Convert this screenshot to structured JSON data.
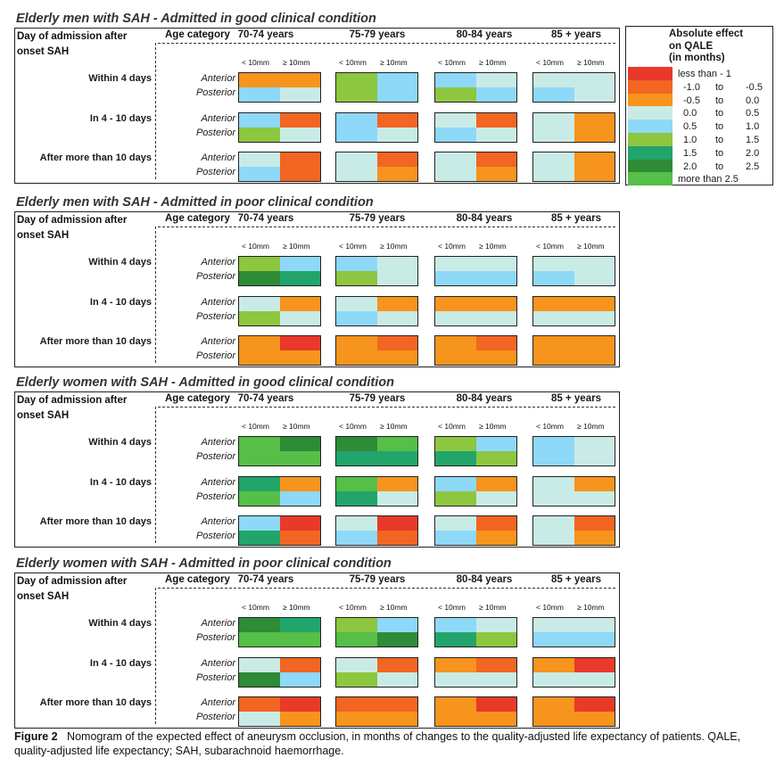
{
  "chart_data": {
    "type": "heatmap",
    "row_header": "Day of admission after onset SAH",
    "column_header": "Age category",
    "age_categories": [
      "70-74 years",
      "75-79 years",
      "80-84 years",
      "85 + years"
    ],
    "aneurysm_sizes": [
      "< 10mm",
      "≥ 10mm"
    ],
    "admission_timings": [
      "Within 4 days",
      "In 4 - 10 days",
      "After more than 10 days"
    ],
    "locations": [
      "Anterior",
      "Posterior"
    ],
    "legend": {
      "title_lines": [
        "Absolute effect",
        "on QALE",
        "(in months)"
      ],
      "items": [
        {
          "label": "less than - 1",
          "lo": "",
          "to": "",
          "hi": "",
          "color": "#e8392a"
        },
        {
          "label": "",
          "lo": "-1.0",
          "to": "to",
          "hi": "-0.5",
          "color": "#f26522"
        },
        {
          "label": "",
          "lo": "-0.5",
          "to": "to",
          "hi": "0.0",
          "color": "#f7941d"
        },
        {
          "label": "",
          "lo": "0.0",
          "to": "to",
          "hi": "0.5",
          "color": "#c9ebe6"
        },
        {
          "label": "",
          "lo": "0.5",
          "to": "to",
          "hi": "1.0",
          "color": "#8ed8f8"
        },
        {
          "label": "",
          "lo": "1.0",
          "to": "to",
          "hi": "1.5",
          "color": "#8dc63f"
        },
        {
          "label": "",
          "lo": "1.5",
          "to": "to",
          "hi": "2.0",
          "color": "#21a56b"
        },
        {
          "label": "",
          "lo": "2.0",
          "to": "to",
          "hi": "2.5",
          "color": "#2e8b36"
        },
        {
          "label": "more than 2.5",
          "lo": "",
          "to": "",
          "hi": "",
          "color": "#56bf47"
        }
      ]
    },
    "panels": [
      {
        "title": "Elderly men with SAH - Admitted in good clinical condition",
        "cells": [
          [
            [
              [
                2,
                2
              ],
              [
                4,
                3
              ]
            ],
            [
              [
                5,
                4
              ],
              [
                5,
                4
              ]
            ],
            [
              [
                4,
                3
              ],
              [
                5,
                4
              ]
            ],
            [
              [
                3,
                3
              ],
              [
                4,
                3
              ]
            ]
          ],
          [
            [
              [
                4,
                1
              ],
              [
                5,
                3
              ]
            ],
            [
              [
                4,
                1
              ],
              [
                4,
                3
              ]
            ],
            [
              [
                3,
                1
              ],
              [
                4,
                3
              ]
            ],
            [
              [
                3,
                2
              ],
              [
                3,
                2
              ]
            ]
          ],
          [
            [
              [
                3,
                1
              ],
              [
                4,
                1
              ]
            ],
            [
              [
                3,
                1
              ],
              [
                3,
                2
              ]
            ],
            [
              [
                3,
                1
              ],
              [
                3,
                2
              ]
            ],
            [
              [
                3,
                2
              ],
              [
                3,
                2
              ]
            ]
          ]
        ]
      },
      {
        "title": "Elderly men with SAH - Admitted in poor clinical condition",
        "cells": [
          [
            [
              [
                5,
                4
              ],
              [
                7,
                6
              ]
            ],
            [
              [
                4,
                3
              ],
              [
                5,
                3
              ]
            ],
            [
              [
                3,
                3
              ],
              [
                4,
                4
              ]
            ],
            [
              [
                3,
                3
              ],
              [
                4,
                3
              ]
            ]
          ],
          [
            [
              [
                3,
                2
              ],
              [
                5,
                3
              ]
            ],
            [
              [
                3,
                2
              ],
              [
                4,
                3
              ]
            ],
            [
              [
                2,
                2
              ],
              [
                3,
                3
              ]
            ],
            [
              [
                2,
                2
              ],
              [
                3,
                3
              ]
            ]
          ],
          [
            [
              [
                2,
                0
              ],
              [
                2,
                2
              ]
            ],
            [
              [
                2,
                1
              ],
              [
                2,
                2
              ]
            ],
            [
              [
                2,
                1
              ],
              [
                2,
                2
              ]
            ],
            [
              [
                2,
                2
              ],
              [
                2,
                2
              ]
            ]
          ]
        ]
      },
      {
        "title": "Elderly women with SAH - Admitted in good clinical condition",
        "cells": [
          [
            [
              [
                8,
                7
              ],
              [
                8,
                8
              ]
            ],
            [
              [
                7,
                8
              ],
              [
                6,
                6
              ]
            ],
            [
              [
                5,
                4
              ],
              [
                6,
                5
              ]
            ],
            [
              [
                4,
                3
              ],
              [
                4,
                3
              ]
            ]
          ],
          [
            [
              [
                6,
                2
              ],
              [
                8,
                4
              ]
            ],
            [
              [
                8,
                2
              ],
              [
                6,
                3
              ]
            ],
            [
              [
                4,
                2
              ],
              [
                5,
                3
              ]
            ],
            [
              [
                3,
                2
              ],
              [
                3,
                3
              ]
            ]
          ],
          [
            [
              [
                4,
                0
              ],
              [
                6,
                1
              ]
            ],
            [
              [
                3,
                0
              ],
              [
                4,
                1
              ]
            ],
            [
              [
                3,
                1
              ],
              [
                4,
                2
              ]
            ],
            [
              [
                3,
                1
              ],
              [
                3,
                2
              ]
            ]
          ]
        ]
      },
      {
        "title": "Elderly women with SAH - Admitted in poor clinical condition",
        "cells": [
          [
            [
              [
                7,
                6
              ],
              [
                8,
                8
              ]
            ],
            [
              [
                5,
                4
              ],
              [
                8,
                7
              ]
            ],
            [
              [
                4,
                3
              ],
              [
                6,
                5
              ]
            ],
            [
              [
                3,
                3
              ],
              [
                4,
                4
              ]
            ]
          ],
          [
            [
              [
                3,
                1
              ],
              [
                7,
                4
              ]
            ],
            [
              [
                3,
                1
              ],
              [
                5,
                3
              ]
            ],
            [
              [
                2,
                1
              ],
              [
                3,
                3
              ]
            ],
            [
              [
                2,
                0
              ],
              [
                3,
                3
              ]
            ]
          ],
          [
            [
              [
                1,
                0
              ],
              [
                3,
                2
              ]
            ],
            [
              [
                1,
                1
              ],
              [
                2,
                2
              ]
            ],
            [
              [
                2,
                0
              ],
              [
                2,
                2
              ]
            ],
            [
              [
                2,
                0
              ],
              [
                2,
                2
              ]
            ]
          ]
        ]
      }
    ]
  },
  "caption": {
    "label": "Figure 2",
    "text": "Nomogram of the expected effect of aneurysm occlusion, in months of changes to the quality-adjusted life expectancy of patients. QALE, quality-adjusted life expectancy; SAH, subarachnoid haemorrhage."
  }
}
